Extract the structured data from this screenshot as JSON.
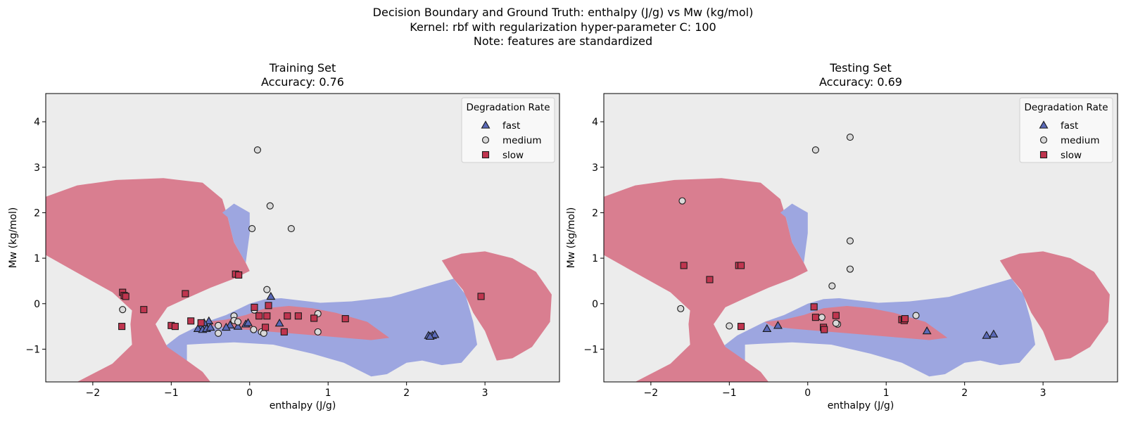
{
  "figure": {
    "title_lines": [
      "Decision Boundary and Ground Truth: enthalpy (J/g) vs Mw (kg/mol)",
      "Kernel: rbf with regularization hyper-parameter C: 100",
      "Note: features are standardized"
    ]
  },
  "colors": {
    "fast": "#9da6e0",
    "slow": "#d97e90",
    "bg": "#ececec",
    "fast_marker": "#5a69b8",
    "medium_marker": "#d9d9d9",
    "slow_marker": "#c0354f"
  },
  "chart_data": [
    {
      "type": "scatter",
      "title_lines": [
        "Training Set",
        "Accuracy: 0.76"
      ],
      "xlabel": "enthalpy (J/g)",
      "ylabel": "Mw (kg/mol)",
      "xlim": [
        -2.6,
        3.95
      ],
      "ylim": [
        -1.72,
        4.62
      ],
      "xticks": [
        -2,
        -1,
        0,
        1,
        2,
        3
      ],
      "yticks": [
        -1,
        0,
        1,
        2,
        3,
        4
      ],
      "xticklabels": [
        "−2",
        "−1",
        "0",
        "1",
        "2",
        "3"
      ],
      "yticklabels": [
        "−1",
        "0",
        "1",
        "2",
        "3",
        "4"
      ],
      "legend": {
        "title": "Degradation Rate",
        "placement": "top-right",
        "entries": [
          "fast",
          "medium",
          "slow"
        ]
      },
      "series": [
        {
          "name": "fast",
          "marker": "triangle",
          "points": [
            [
              0.27,
              0.16
            ],
            [
              -0.52,
              -0.38
            ],
            [
              -0.58,
              -0.42
            ],
            [
              -0.62,
              -0.5
            ],
            [
              -0.66,
              -0.55
            ],
            [
              -0.6,
              -0.57
            ],
            [
              -0.55,
              -0.55
            ],
            [
              -0.5,
              -0.52
            ],
            [
              -0.25,
              -0.47
            ],
            [
              -0.3,
              -0.52
            ],
            [
              -0.15,
              -0.5
            ],
            [
              -0.05,
              -0.45
            ],
            [
              -0.02,
              -0.42
            ],
            [
              0.38,
              -0.43
            ],
            [
              2.28,
              -0.7
            ],
            [
              2.33,
              -0.7
            ],
            [
              2.36,
              -0.68
            ],
            [
              2.3,
              -0.72
            ]
          ]
        },
        {
          "name": "medium",
          "marker": "circle",
          "points": [
            [
              0.1,
              3.38
            ],
            [
              0.26,
              2.15
            ],
            [
              0.03,
              1.65
            ],
            [
              0.53,
              1.65
            ],
            [
              0.22,
              0.31
            ],
            [
              0.06,
              -0.14
            ],
            [
              -1.62,
              -0.13
            ],
            [
              -0.2,
              -0.27
            ],
            [
              -0.2,
              -0.37
            ],
            [
              -0.15,
              -0.4
            ],
            [
              -0.4,
              -0.48
            ],
            [
              -0.4,
              -0.65
            ],
            [
              0.05,
              -0.57
            ],
            [
              0.15,
              -0.62
            ],
            [
              0.18,
              -0.65
            ],
            [
              0.87,
              -0.22
            ],
            [
              0.87,
              -0.62
            ]
          ]
        },
        {
          "name": "slow",
          "marker": "square",
          "points": [
            [
              -1.62,
              0.25
            ],
            [
              -1.6,
              0.18
            ],
            [
              -1.58,
              0.16
            ],
            [
              -0.18,
              0.65
            ],
            [
              -0.14,
              0.63
            ],
            [
              -0.82,
              0.22
            ],
            [
              -1.35,
              -0.13
            ],
            [
              -1.63,
              -0.5
            ],
            [
              -1.0,
              -0.48
            ],
            [
              -0.95,
              -0.5
            ],
            [
              -0.75,
              -0.38
            ],
            [
              -0.62,
              -0.42
            ],
            [
              0.06,
              -0.08
            ],
            [
              0.24,
              -0.04
            ],
            [
              0.12,
              -0.27
            ],
            [
              0.22,
              -0.27
            ],
            [
              0.48,
              -0.27
            ],
            [
              0.62,
              -0.27
            ],
            [
              0.82,
              -0.32
            ],
            [
              1.22,
              -0.33
            ],
            [
              0.44,
              -0.62
            ],
            [
              0.2,
              -0.52
            ],
            [
              2.95,
              0.16
            ]
          ]
        }
      ]
    },
    {
      "type": "scatter",
      "title_lines": [
        "Testing Set",
        "Accuracy: 0.69"
      ],
      "xlabel": "enthalpy (J/g)",
      "ylabel": "Mw (kg/mol)",
      "xlim": [
        -2.6,
        3.95
      ],
      "ylim": [
        -1.72,
        4.62
      ],
      "xticks": [
        -2,
        -1,
        0,
        1,
        2,
        3
      ],
      "yticks": [
        -1,
        0,
        1,
        2,
        3,
        4
      ],
      "xticklabels": [
        "−2",
        "−1",
        "0",
        "1",
        "2",
        "3"
      ],
      "yticklabels": [
        "−1",
        "0",
        "1",
        "2",
        "3",
        "4"
      ],
      "legend": {
        "title": "Degradation Rate",
        "placement": "top-right",
        "entries": [
          "fast",
          "medium",
          "slow"
        ]
      },
      "series": [
        {
          "name": "fast",
          "marker": "triangle",
          "points": [
            [
              -0.52,
              -0.55
            ],
            [
              -0.38,
              -0.48
            ],
            [
              1.52,
              -0.6
            ],
            [
              2.28,
              -0.7
            ],
            [
              2.37,
              -0.67
            ]
          ]
        },
        {
          "name": "medium",
          "marker": "circle",
          "points": [
            [
              0.54,
              3.66
            ],
            [
              0.1,
              3.38
            ],
            [
              -1.6,
              2.26
            ],
            [
              0.54,
              1.38
            ],
            [
              0.54,
              0.76
            ],
            [
              0.31,
              0.39
            ],
            [
              -1.62,
              -0.11
            ],
            [
              -1.0,
              -0.49
            ],
            [
              0.18,
              -0.3
            ],
            [
              0.38,
              -0.45
            ],
            [
              0.36,
              -0.43
            ],
            [
              1.38,
              -0.26
            ]
          ]
        },
        {
          "name": "slow",
          "marker": "square",
          "points": [
            [
              -1.58,
              0.84
            ],
            [
              -0.88,
              0.84
            ],
            [
              -0.85,
              0.84
            ],
            [
              -1.25,
              0.53
            ],
            [
              0.08,
              -0.07
            ],
            [
              0.1,
              -0.3
            ],
            [
              0.36,
              -0.26
            ],
            [
              0.2,
              -0.52
            ],
            [
              0.21,
              -0.57
            ],
            [
              -0.85,
              -0.5
            ],
            [
              1.2,
              -0.35
            ],
            [
              1.23,
              -0.37
            ],
            [
              1.24,
              -0.33
            ]
          ]
        }
      ]
    }
  ]
}
